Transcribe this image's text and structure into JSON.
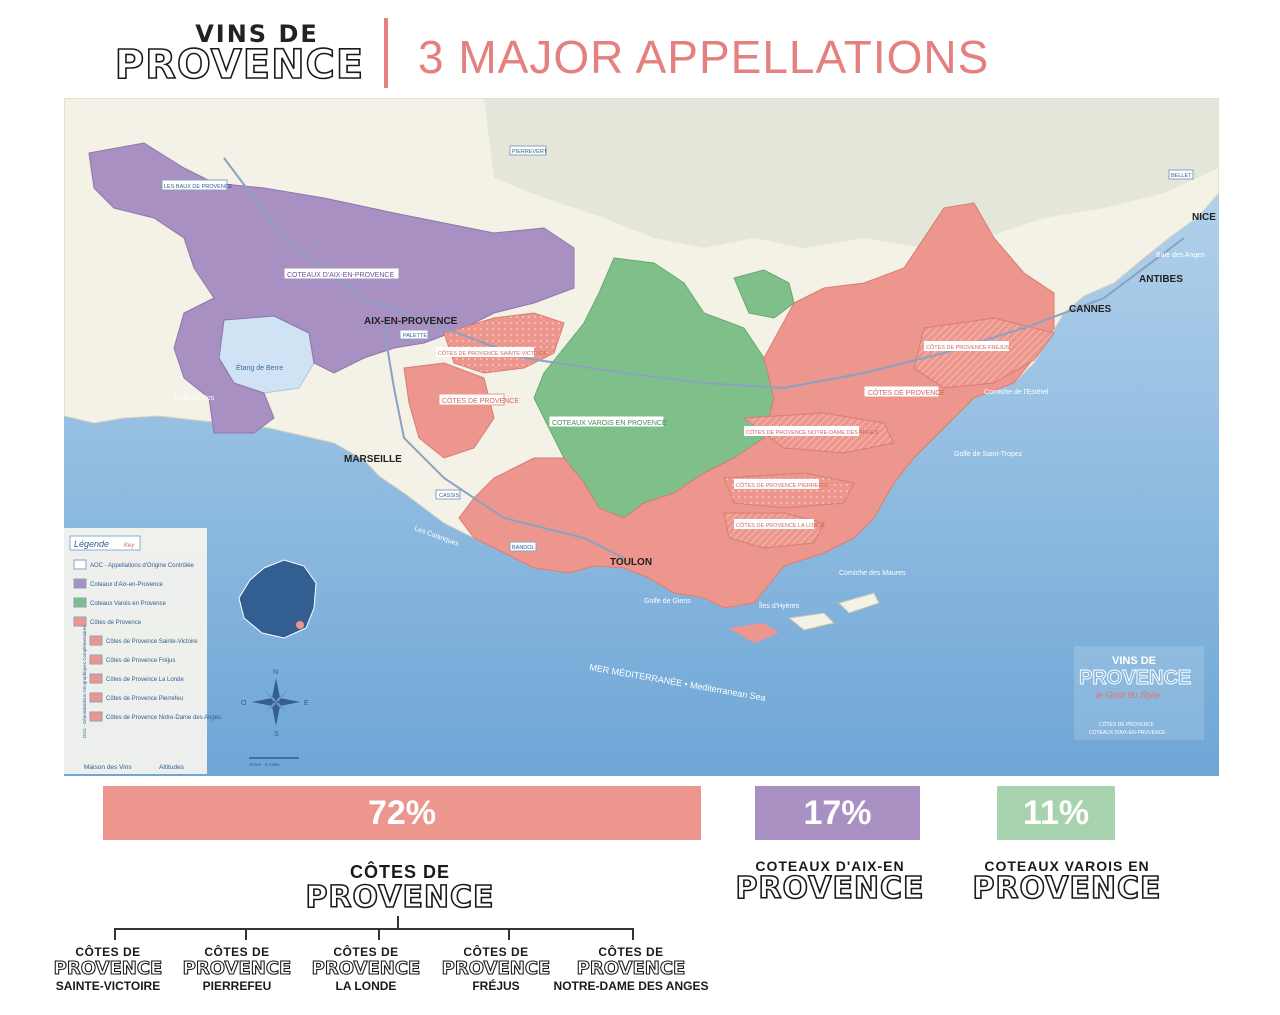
{
  "header": {
    "logo_line1": "VINS DE",
    "logo_line2": "PROVENCE",
    "title": "3 MAJOR APPELLATIONS"
  },
  "colors": {
    "cotes_de_provence": "#ec968d",
    "coteaux_aix": "#a890c2",
    "coteaux_varois": "#a6d3ae",
    "sea": "#7fb1dc",
    "land": "#f4f1e6",
    "title_accent": "#e4807f"
  },
  "map": {
    "cities": [
      "MARSEILLE",
      "AIX-EN-PROVENCE",
      "TOULON",
      "NICE",
      "CANNES",
      "ANTIBES"
    ],
    "appellation_labels": [
      "COTEAUX D'AIX-EN-PROVENCE",
      "CÔTES DE PROVENCE",
      "COTEAUX VAROIS EN PROVENCE",
      "CÔTES DE PROVENCE",
      "CÔTES DE PROVENCE SAINTE-VICTOIRE",
      "CÔTES DE PROVENCE FRÉJUS",
      "CÔTES DE PROVENCE NOTRE-DAME DES ANGES",
      "CÔTES DE PROVENCE PIERREFEU",
      "CÔTES DE PROVENCE LA LONDE",
      "LES BAUX DE PROVENCE",
      "PALETTE",
      "CASSIS",
      "BANDOL",
      "BELLET",
      "PIERREVERT"
    ],
    "sea_labels": [
      "MER MÉDITERRANÉE • Mediterranean Sea",
      "Golfe de Saint-Tropez",
      "Golfe de Fos",
      "Étang de Berre",
      "Les Calanques",
      "Îles d'Hyères",
      "Corniche des Maures",
      "Corniche de l'Estérel",
      "Golfe de Giens",
      "Baie des Anges"
    ],
    "compass": {
      "n": "N",
      "s": "S",
      "e": "E",
      "o": "O"
    },
    "scale": "10 km · 6 miles",
    "legend": {
      "title": "Légende",
      "subtitle": "Key",
      "items": [
        {
          "label": "AOC - Appellations d'Origine Contrôlée",
          "swatch": "#ffffff"
        },
        {
          "label": "Coteaux d'Aix-en-Provence",
          "swatch": "#a890c2"
        },
        {
          "label": "Coteaux Varois en Provence",
          "swatch": "#7fc08a"
        },
        {
          "label": "Côtes de Provence",
          "swatch": "#ec968d"
        },
        {
          "label": "Côtes de Provence Sainte-Victoire",
          "swatch": "#ec968d"
        },
        {
          "label": "Côtes de Provence Fréjus",
          "swatch": "#ec968d"
        },
        {
          "label": "Côtes de Provence La Londe",
          "swatch": "#ec968d"
        },
        {
          "label": "Côtes de Provence Pierrefeu",
          "swatch": "#ec968d"
        },
        {
          "label": "Côtes de Provence Notre-Dame des Anges",
          "swatch": "#ec968d"
        }
      ],
      "dge_label": "DGC - Dénominations Géographiques Complémentaires",
      "footer1": "Maison des Vins",
      "footer2": "Altitudes"
    },
    "watermark": {
      "line1": "VINS DE",
      "line2": "PROVENCE",
      "line3": "le Goût du Style",
      "line4": "CÔTES DE PROVENCE",
      "line5": "COTEAUX D'AIX-EN-PROVENCE"
    }
  },
  "shares": [
    {
      "name": "Côtes de Provence",
      "percent": 72,
      "label": "72%"
    },
    {
      "name": "Coteaux d'Aix-en-Provence",
      "percent": 17,
      "label": "17%"
    },
    {
      "name": "Coteaux Varois en Provence",
      "percent": 11,
      "label": "11%"
    }
  ],
  "appellations": {
    "cdp": {
      "small": "CÔTES DE",
      "big": "PROVENCE"
    },
    "aix": {
      "small": "COTEAUX D'AIX-EN",
      "big": "PROVENCE"
    },
    "varois": {
      "small": "COTEAUX VAROIS EN",
      "big": "PROVENCE"
    }
  },
  "sub_appellations": [
    {
      "top": "CÔTES DE",
      "mid": "PROVENCE",
      "bottom": "SAINTE-VICTOIRE"
    },
    {
      "top": "CÔTES DE",
      "mid": "PROVENCE",
      "bottom": "PIERREFEU"
    },
    {
      "top": "CÔTES DE",
      "mid": "PROVENCE",
      "bottom": "LA LONDE"
    },
    {
      "top": "CÔTES DE",
      "mid": "PROVENCE",
      "bottom": "FRÉJUS"
    },
    {
      "top": "CÔTES DE",
      "mid": "PROVENCE",
      "bottom": "NOTRE-DAME DES ANGES"
    }
  ]
}
